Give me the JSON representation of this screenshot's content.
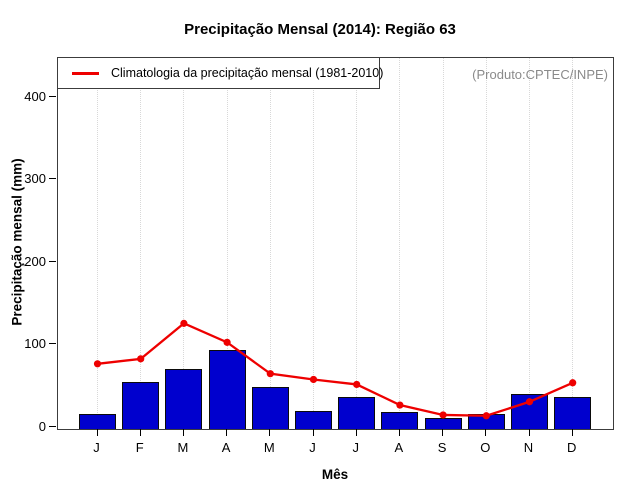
{
  "figure": {
    "produto_label": "(Produto:CPTEC/INPE)",
    "legend": {
      "label": "Climatologia da precipitação mensal (1981-2010)"
    },
    "colors": {
      "bar_fill": "#0000ce",
      "bar_border": "#0a0a0a",
      "line": "#ee0000",
      "grid": "#d8d8d8",
      "axis": "#3c3c3c",
      "tick": "#000000",
      "produto_text": "#8a8a8a"
    }
  },
  "chart_data": {
    "type": "bar",
    "title": "Precipitação Mensal (2014): Região 63",
    "xlabel": "Mês",
    "ylabel": "Precipitação mensal (mm)",
    "categories": [
      "J",
      "F",
      "M",
      "A",
      "M",
      "J",
      "J",
      "A",
      "S",
      "O",
      "N",
      "D"
    ],
    "series": [
      {
        "name": "Precipitação Mensal (2014)",
        "type": "bar",
        "values": [
          15,
          54,
          70,
          93,
          48,
          19,
          36,
          17,
          10,
          15,
          40,
          36
        ]
      },
      {
        "name": "Climatologia da precipitação mensal (1981-2010)",
        "type": "line",
        "values": [
          76,
          82,
          125,
          102,
          64,
          57,
          51,
          26,
          14,
          13,
          30,
          53
        ]
      }
    ],
    "ylim": [
      0,
      448
    ],
    "yticks": [
      0,
      100,
      200,
      300,
      400
    ],
    "grid": "vertical-dotted",
    "legend_position": "top-left"
  }
}
